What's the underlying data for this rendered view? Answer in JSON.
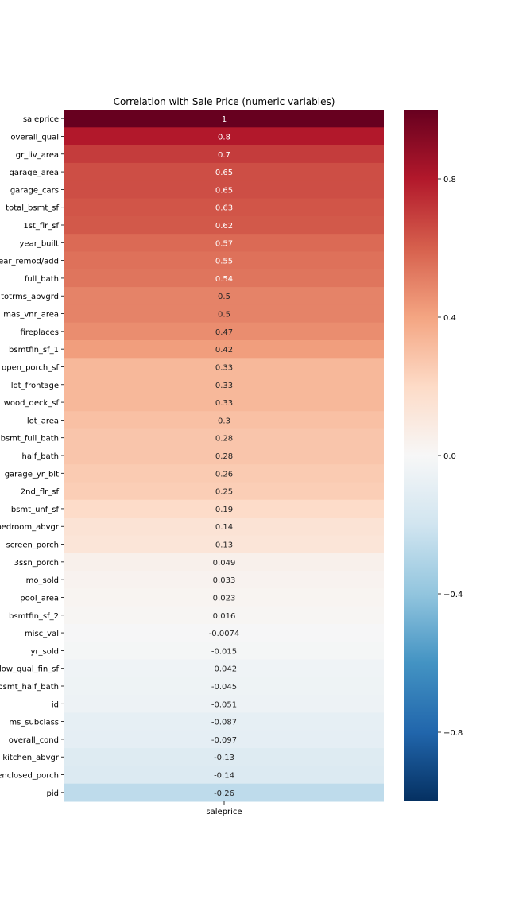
{
  "chart_data": {
    "type": "heatmap",
    "title": "Correlation with Sale Price (numeric variables)",
    "columns": [
      "saleprice"
    ],
    "rows": [
      "saleprice",
      "overall_qual",
      "gr_liv_area",
      "garage_area",
      "garage_cars",
      "total_bsmt_sf",
      "1st_flr_sf",
      "year_built",
      "year_remod/add",
      "full_bath",
      "totrms_abvgrd",
      "mas_vnr_area",
      "fireplaces",
      "bsmtfin_sf_1",
      "open_porch_sf",
      "lot_frontage",
      "wood_deck_sf",
      "lot_area",
      "bsmt_full_bath",
      "half_bath",
      "garage_yr_blt",
      "2nd_flr_sf",
      "bsmt_unf_sf",
      "bedroom_abvgr",
      "screen_porch",
      "3ssn_porch",
      "mo_sold",
      "pool_area",
      "bsmtfin_sf_2",
      "misc_val",
      "yr_sold",
      "low_qual_fin_sf",
      "bsmt_half_bath",
      "id",
      "ms_subclass",
      "overall_cond",
      "kitchen_abvgr",
      "enclosed_porch",
      "pid"
    ],
    "values": [
      1,
      0.8,
      0.7,
      0.65,
      0.65,
      0.63,
      0.62,
      0.57,
      0.55,
      0.54,
      0.5,
      0.5,
      0.47,
      0.42,
      0.33,
      0.33,
      0.33,
      0.3,
      0.28,
      0.28,
      0.26,
      0.25,
      0.19,
      0.14,
      0.13,
      0.049,
      0.033,
      0.023,
      0.016,
      -0.0074,
      -0.015,
      -0.042,
      -0.045,
      -0.051,
      -0.087,
      -0.097,
      -0.13,
      -0.14,
      -0.26
    ],
    "value_labels": [
      "1",
      "0.8",
      "0.7",
      "0.65",
      "0.65",
      "0.63",
      "0.62",
      "0.57",
      "0.55",
      "0.54",
      "0.5",
      "0.5",
      "0.47",
      "0.42",
      "0.33",
      "0.33",
      "0.33",
      "0.3",
      "0.28",
      "0.28",
      "0.26",
      "0.25",
      "0.19",
      "0.14",
      "0.13",
      "0.049",
      "0.033",
      "0.023",
      "0.016",
      "-0.0074",
      "-0.015",
      "-0.042",
      "-0.045",
      "-0.051",
      "-0.087",
      "-0.097",
      "-0.13",
      "-0.14",
      "-0.26"
    ],
    "colorbar": {
      "range": [
        -1,
        1
      ],
      "colormap": "RdBu_r",
      "ticks": [
        0.8,
        0.4,
        0.0,
        -0.4,
        -0.8
      ],
      "tick_labels": [
        "0.8",
        "0.4",
        "0.0",
        "−0.4",
        "−0.8"
      ]
    },
    "grid": false,
    "legend": "colorbar-right"
  }
}
